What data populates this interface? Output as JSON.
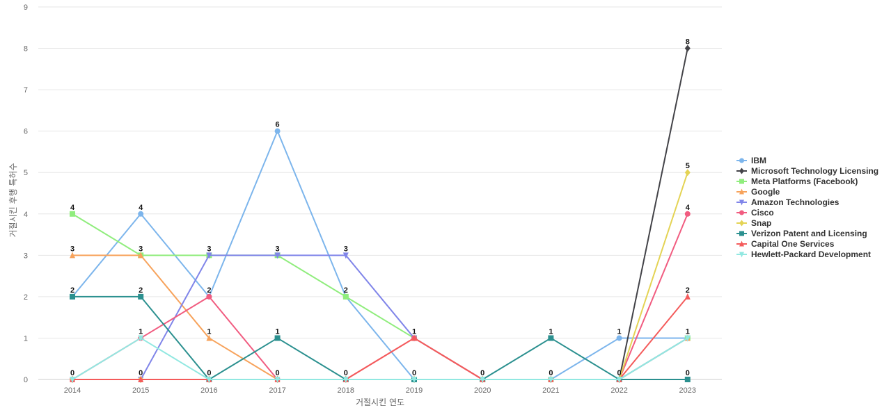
{
  "chart_data": {
    "type": "line",
    "title": "",
    "xlabel": "거절시킨 연도",
    "ylabel": "거절시킨 후행 특허수",
    "ylim": [
      0,
      9
    ],
    "y_ticks": [
      0,
      1,
      2,
      3,
      4,
      5,
      6,
      7,
      8,
      9
    ],
    "grid": "horizontal",
    "legend_position": "right",
    "categories": [
      "2014",
      "2015",
      "2016",
      "2017",
      "2018",
      "2019",
      "2020",
      "2021",
      "2022",
      "2023"
    ],
    "series": [
      {
        "name": "IBM",
        "color": "#7cb5ec",
        "marker": "circle",
        "values": [
          2,
          4,
          2,
          6,
          2,
          0,
          0,
          0,
          1,
          1
        ]
      },
      {
        "name": "Microsoft Technology Licensing",
        "color": "#434348",
        "marker": "diamond",
        "values": [
          0,
          0,
          0,
          0,
          0,
          0,
          0,
          0,
          0,
          8
        ]
      },
      {
        "name": "Meta Platforms (Facebook)",
        "color": "#90ed7d",
        "marker": "square",
        "values": [
          4,
          3,
          3,
          3,
          2,
          1,
          0,
          0,
          0,
          1
        ]
      },
      {
        "name": "Google",
        "color": "#f7a35c",
        "marker": "triangle",
        "values": [
          3,
          3,
          1,
          0,
          0,
          0,
          0,
          0,
          0,
          1
        ]
      },
      {
        "name": "Amazon Technologies",
        "color": "#8085e9",
        "marker": "triangle-down",
        "values": [
          0,
          0,
          3,
          3,
          3,
          1,
          0,
          0,
          0,
          1
        ]
      },
      {
        "name": "Cisco",
        "color": "#f15c80",
        "marker": "circle",
        "values": [
          0,
          1,
          2,
          0,
          0,
          1,
          0,
          0,
          0,
          4
        ]
      },
      {
        "name": "Snap",
        "color": "#e4d354",
        "marker": "diamond",
        "values": [
          0,
          0,
          0,
          0,
          0,
          0,
          0,
          0,
          0,
          5
        ]
      },
      {
        "name": "Verizon Patent and Licensing",
        "color": "#2b908f",
        "marker": "square",
        "values": [
          2,
          2,
          0,
          1,
          0,
          0,
          0,
          1,
          0,
          0
        ]
      },
      {
        "name": "Capital One Services",
        "color": "#f45b5b",
        "marker": "triangle",
        "values": [
          0,
          0,
          0,
          0,
          0,
          1,
          0,
          0,
          0,
          2
        ]
      },
      {
        "name": "Hewlett-Packard Development",
        "color": "#91e8e1",
        "marker": "triangle-down",
        "values": [
          0,
          1,
          0,
          0,
          0,
          0,
          0,
          0,
          0,
          1
        ]
      }
    ],
    "data_labels": [
      {
        "x": "2014",
        "value": 4
      },
      {
        "x": "2014",
        "value": 3
      },
      {
        "x": "2014",
        "value": 2
      },
      {
        "x": "2014",
        "value": 0
      },
      {
        "x": "2015",
        "value": 4
      },
      {
        "x": "2015",
        "value": 3
      },
      {
        "x": "2015",
        "value": 2
      },
      {
        "x": "2015",
        "value": 1
      },
      {
        "x": "2015",
        "value": 0
      },
      {
        "x": "2016",
        "value": 3
      },
      {
        "x": "2016",
        "value": 2
      },
      {
        "x": "2016",
        "value": 1
      },
      {
        "x": "2016",
        "value": 0
      },
      {
        "x": "2017",
        "value": 6
      },
      {
        "x": "2017",
        "value": 3
      },
      {
        "x": "2017",
        "value": 1
      },
      {
        "x": "2017",
        "value": 0
      },
      {
        "x": "2018",
        "value": 3
      },
      {
        "x": "2018",
        "value": 2
      },
      {
        "x": "2018",
        "value": 0
      },
      {
        "x": "2019",
        "value": 1
      },
      {
        "x": "2019",
        "value": 0
      },
      {
        "x": "2020",
        "value": 0
      },
      {
        "x": "2021",
        "value": 1
      },
      {
        "x": "2021",
        "value": 0
      },
      {
        "x": "2022",
        "value": 1
      },
      {
        "x": "2022",
        "value": 0
      },
      {
        "x": "2023",
        "value": 8
      },
      {
        "x": "2023",
        "value": 5
      },
      {
        "x": "2023",
        "value": 4
      },
      {
        "x": "2023",
        "value": 2
      },
      {
        "x": "2023",
        "value": 1
      },
      {
        "x": "2023",
        "value": 0
      }
    ]
  }
}
